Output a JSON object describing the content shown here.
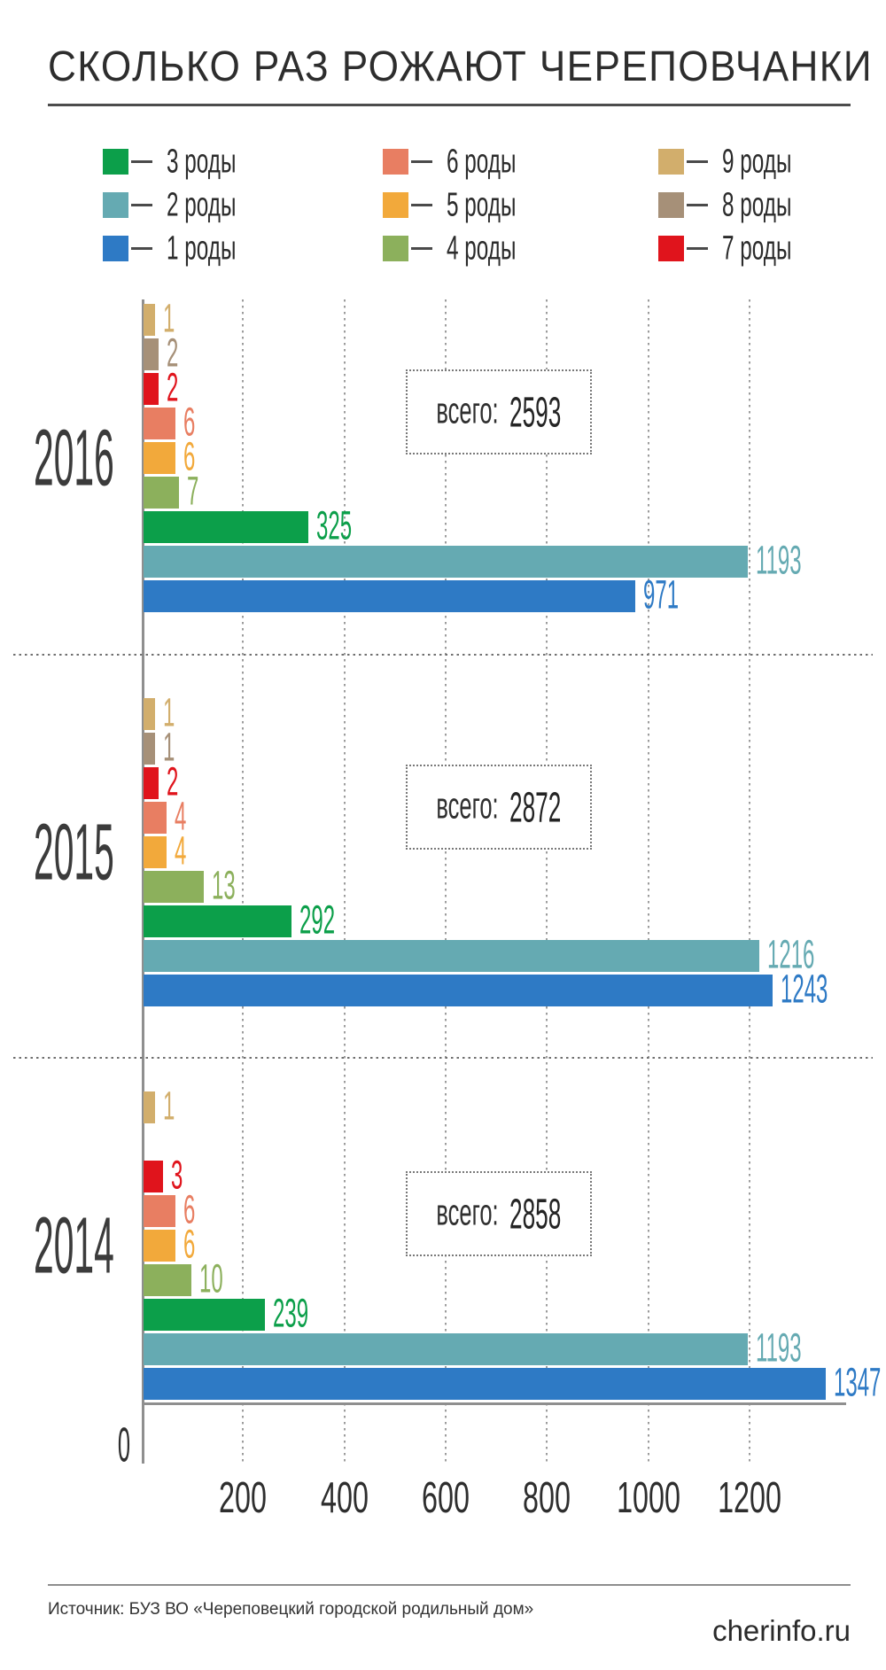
{
  "title": "СКОЛЬКО РАЗ РОЖАЮТ ЧЕРЕПОВЧАНКИ",
  "legend": {
    "items": [
      {
        "label": "3 роды",
        "color": "#0c9f4a"
      },
      {
        "label": "2 роды",
        "color": "#65aab2"
      },
      {
        "label": "1 роды",
        "color": "#2e7ac5"
      },
      {
        "label": "6 роды",
        "color": "#e87e62"
      },
      {
        "label": "5 роды",
        "color": "#f2a93b"
      },
      {
        "label": "4 роды",
        "color": "#8cb05c"
      },
      {
        "label": "9 роды",
        "color": "#d2ae6c"
      },
      {
        "label": "8 роды",
        "color": "#a69078"
      },
      {
        "label": "7 роды",
        "color": "#e0141c"
      }
    ]
  },
  "chart_data": {
    "type": "bar",
    "orientation": "horizontal",
    "x_axis": {
      "ticks": [
        0,
        200,
        400,
        600,
        800,
        1000,
        1200
      ],
      "max": 1400,
      "grid": "dotted"
    },
    "series_colors": {
      "1 роды": "#2e7ac5",
      "2 роды": "#65aab2",
      "3 роды": "#0c9f4a",
      "4 роды": "#8cb05c",
      "5 роды": "#f2a93b",
      "6 роды": "#e87e62",
      "7 роды": "#e0141c",
      "8 роды": "#a69078",
      "9 роды": "#d2ae6c"
    },
    "groups": [
      {
        "year": "2016",
        "total_label": "всего:",
        "total": 2593,
        "bars": [
          {
            "series": "9 роды",
            "value": 1
          },
          {
            "series": "8 роды",
            "value": 2
          },
          {
            "series": "7 роды",
            "value": 2
          },
          {
            "series": "6 роды",
            "value": 6
          },
          {
            "series": "5 роды",
            "value": 6
          },
          {
            "series": "4 роды",
            "value": 7
          },
          {
            "series": "3 роды",
            "value": 325
          },
          {
            "series": "2 роды",
            "value": 1193
          },
          {
            "series": "1 роды",
            "value": 971
          }
        ]
      },
      {
        "year": "2015",
        "total_label": "всего:",
        "total": 2872,
        "bars": [
          {
            "series": "9 роды",
            "value": 1
          },
          {
            "series": "8 роды",
            "value": 1
          },
          {
            "series": "7 роды",
            "value": 2
          },
          {
            "series": "6 роды",
            "value": 4
          },
          {
            "series": "5 роды",
            "value": 4
          },
          {
            "series": "4 роды",
            "value": 13
          },
          {
            "series": "3 роды",
            "value": 292
          },
          {
            "series": "2 роды",
            "value": 1216
          },
          {
            "series": "1 роды",
            "value": 1243
          }
        ]
      },
      {
        "year": "2014",
        "total_label": "всего:",
        "total": 2858,
        "bars": [
          {
            "series": "9 роды",
            "value": 1
          },
          {
            "series": "8 роды",
            "value": null
          },
          {
            "series": "7 роды",
            "value": 3
          },
          {
            "series": "6 роды",
            "value": 6
          },
          {
            "series": "5 роды",
            "value": 6
          },
          {
            "series": "4 роды",
            "value": 10
          },
          {
            "series": "3 роды",
            "value": 239
          },
          {
            "series": "2 роды",
            "value": 1193
          },
          {
            "series": "1 роды",
            "value": 1347
          }
        ]
      }
    ]
  },
  "footer": {
    "source": "Источник: БУЗ ВО «Череповецкий городской родильный дом»",
    "site": "cherinfo.ru"
  }
}
